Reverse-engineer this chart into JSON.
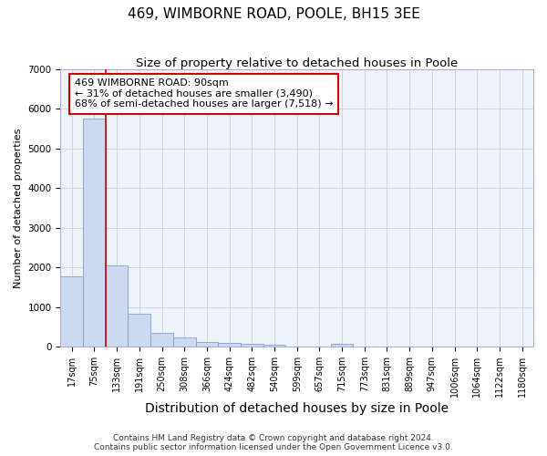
{
  "title": "469, WIMBORNE ROAD, POOLE, BH15 3EE",
  "subtitle": "Size of property relative to detached houses in Poole",
  "xlabel": "Distribution of detached houses by size in Poole",
  "ylabel": "Number of detached properties",
  "annotation_line1": "469 WIMBORNE ROAD: 90sqm",
  "annotation_line2": "← 31% of detached houses are smaller (3,490)",
  "annotation_line3": "68% of semi-detached houses are larger (7,518) →",
  "footer_line1": "Contains HM Land Registry data © Crown copyright and database right 2024.",
  "footer_line2": "Contains public sector information licensed under the Open Government Licence v3.0.",
  "bin_labels": [
    "17sqm",
    "75sqm",
    "133sqm",
    "191sqm",
    "250sqm",
    "308sqm",
    "366sqm",
    "424sqm",
    "482sqm",
    "540sqm",
    "599sqm",
    "657sqm",
    "715sqm",
    "773sqm",
    "831sqm",
    "889sqm",
    "947sqm",
    "1006sqm",
    "1064sqm",
    "1122sqm",
    "1180sqm"
  ],
  "bar_values": [
    1780,
    5750,
    2060,
    830,
    360,
    230,
    115,
    105,
    80,
    60,
    0,
    0,
    80,
    0,
    0,
    0,
    0,
    0,
    0,
    0,
    0
  ],
  "bar_color": "#ccd9f0",
  "bar_edge_color": "#7a9fd4",
  "red_line_x": 1.5,
  "red_line_color": "#cc0000",
  "annotation_box_edgecolor": "#cc0000",
  "ylim": [
    0,
    7000
  ],
  "yticks": [
    0,
    1000,
    2000,
    3000,
    4000,
    5000,
    6000,
    7000
  ],
  "background_color": "#eef2fa",
  "grid_color": "#c5cfe8",
  "title_fontsize": 11,
  "subtitle_fontsize": 9.5,
  "xlabel_fontsize": 10,
  "ylabel_fontsize": 8,
  "tick_fontsize": 7,
  "footer_fontsize": 6.5,
  "annotation_fontsize": 8
}
